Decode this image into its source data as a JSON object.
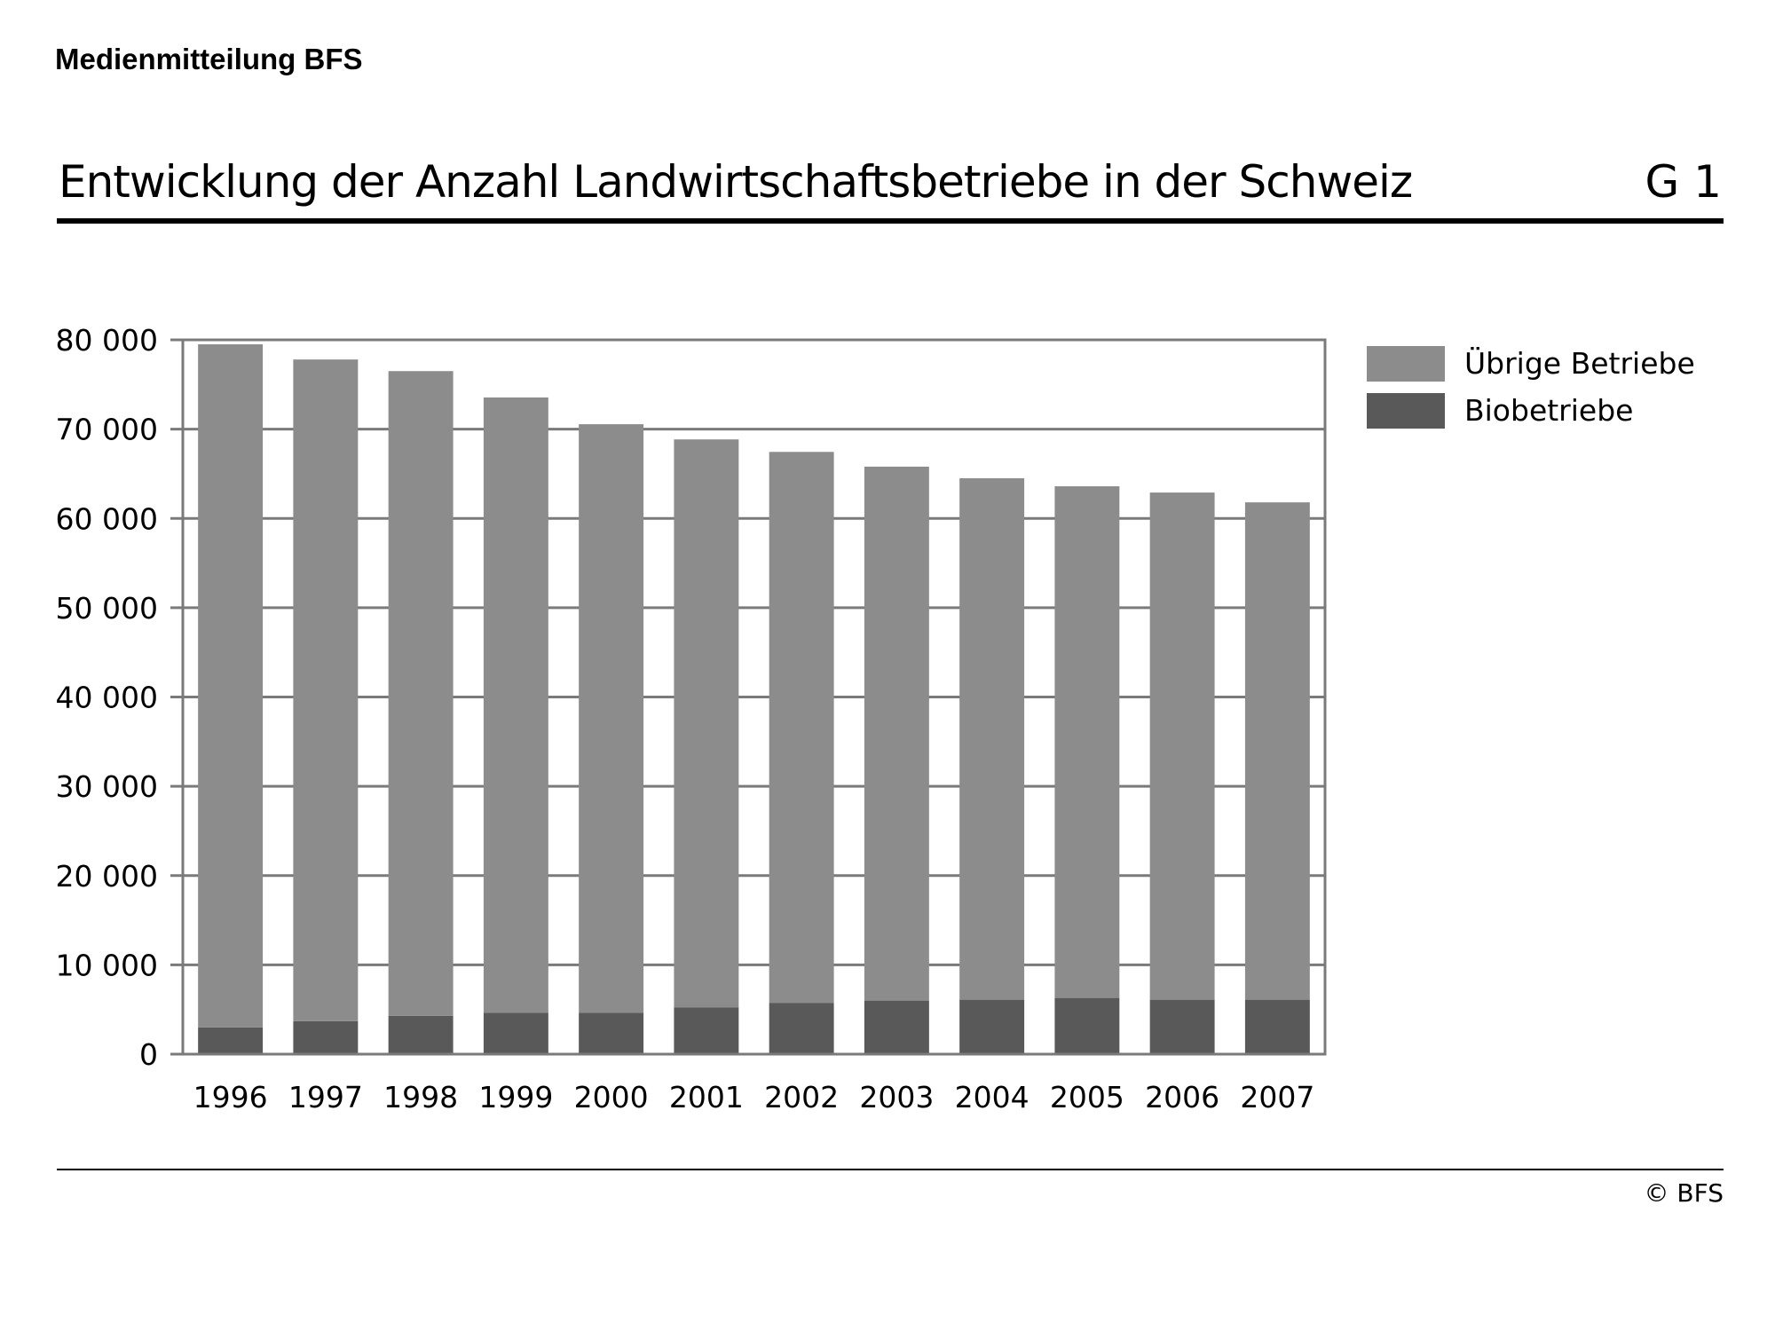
{
  "header": {
    "label": "Medienmitteilung BFS"
  },
  "chart_code": "G 1",
  "footer": {
    "copyright": "© BFS"
  },
  "chart_data": {
    "type": "bar",
    "stacked": true,
    "title": "Entwicklung der Anzahl Landwirtschaftsbetriebe in der Schweiz",
    "categories": [
      "1996",
      "1997",
      "1998",
      "1999",
      "2000",
      "2001",
      "2002",
      "2003",
      "2004",
      "2005",
      "2006",
      "2007"
    ],
    "series": [
      {
        "name": "Biobetriebe",
        "color": "#595959",
        "values": [
          3000,
          3700,
          4300,
          4650,
          4650,
          5250,
          5750,
          6000,
          6100,
          6300,
          6100,
          6100
        ]
      },
      {
        "name": "Übrige Betriebe",
        "color": "#8c8c8c",
        "values": [
          76500,
          74100,
          72200,
          68900,
          65900,
          63600,
          61700,
          59800,
          58400,
          57300,
          56800,
          55700
        ]
      }
    ],
    "yticks": [
      0,
      10000,
      20000,
      30000,
      40000,
      50000,
      60000,
      70000,
      80000
    ],
    "ytick_labels": [
      "0",
      "10 000",
      "20 000",
      "30 000",
      "40 000",
      "50 000",
      "60 000",
      "70 000",
      "80 000"
    ],
    "ylim": [
      0,
      80000
    ],
    "grid": true,
    "legend_position": "right",
    "legend_order": [
      "Übrige Betriebe",
      "Biobetriebe"
    ]
  }
}
